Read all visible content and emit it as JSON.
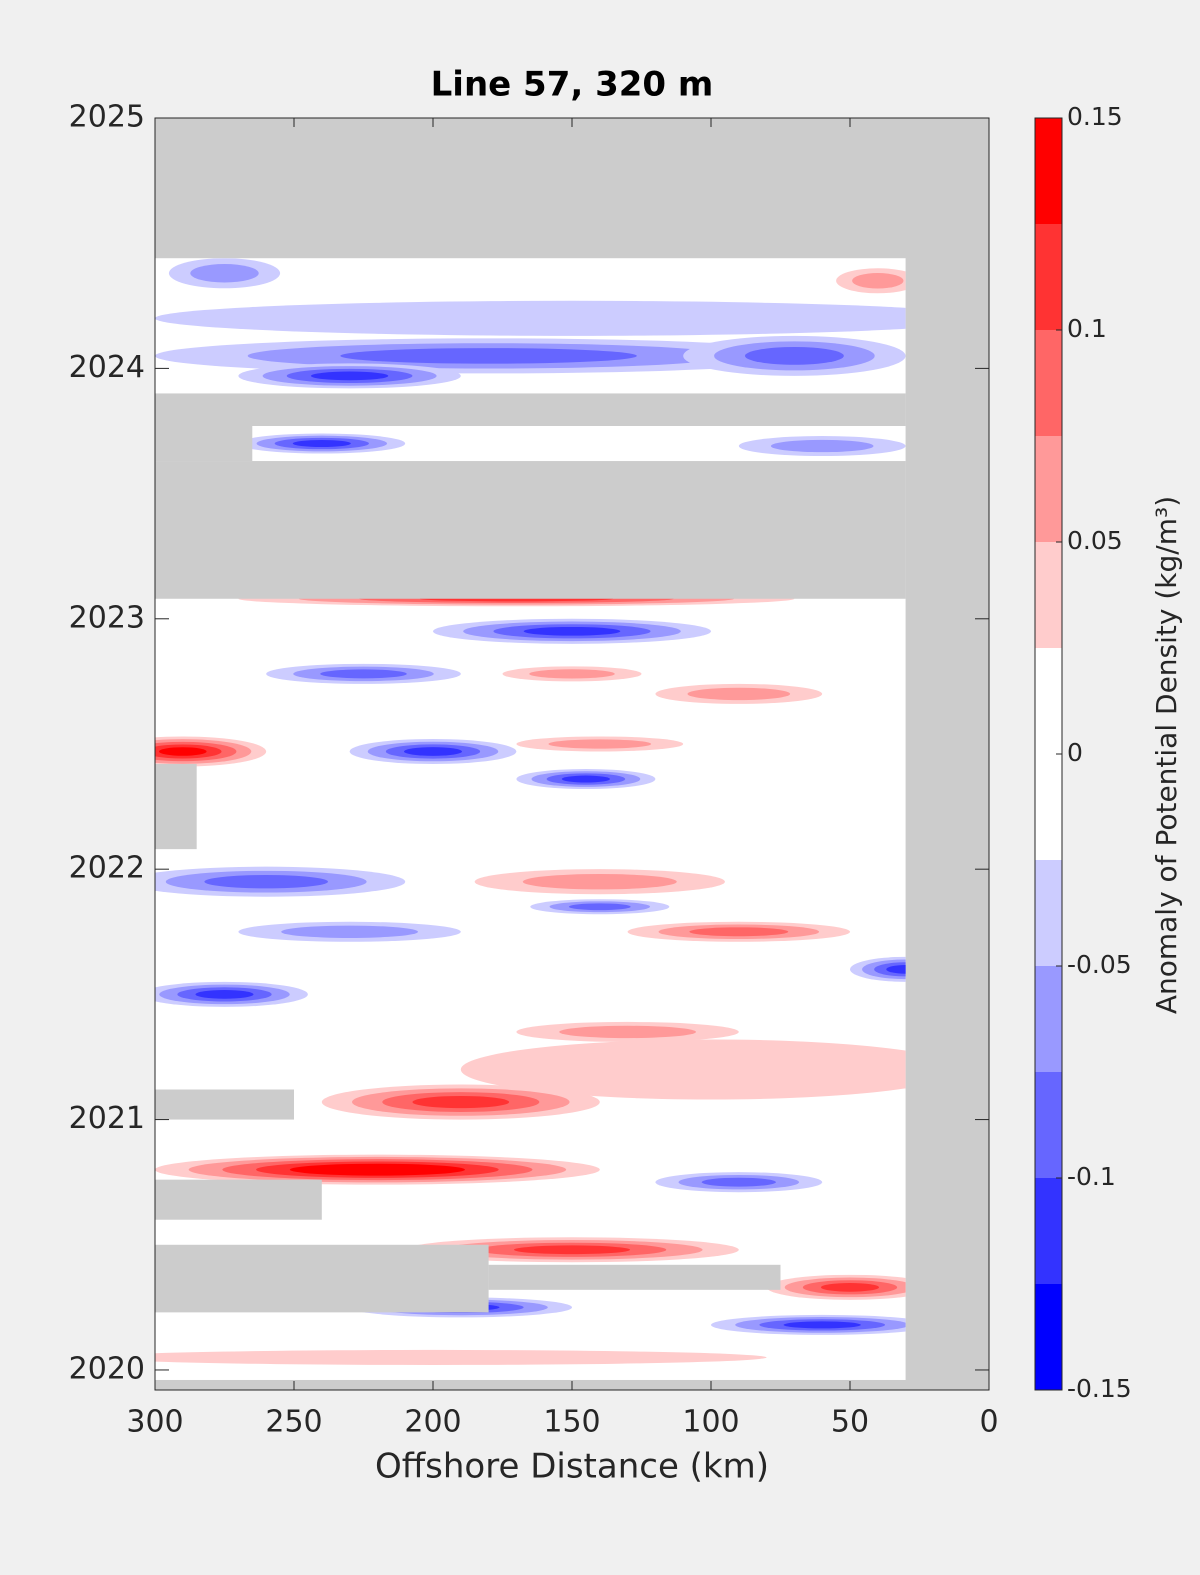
{
  "chart_data": {
    "type": "contourf",
    "title": "Line 57, 320 m",
    "xlabel": "Offshore Distance (km)",
    "colorbar_label": "Anomaly of Potential Density (kg/m³)",
    "xlim": [
      300,
      0
    ],
    "xticks": [
      300,
      250,
      200,
      150,
      100,
      50,
      0
    ],
    "ylim": [
      2019.92,
      2025
    ],
    "yticks": [
      2020,
      2021,
      2022,
      2023,
      2024,
      2025
    ],
    "missing_color": "#cccccc",
    "coverage": [
      300,
      30,
      2019.96,
      2024.44
    ],
    "levels": [
      -0.15,
      -0.125,
      -0.1,
      -0.075,
      -0.05,
      -0.025,
      0,
      0.025,
      0.05,
      0.075,
      0.1,
      0.125,
      0.15
    ],
    "colors": [
      "#0000ff",
      "#3333ff",
      "#6666ff",
      "#9999ff",
      "#ccccff",
      "#ffffff",
      "#ffffff",
      "#ffcccc",
      "#ff9999",
      "#ff6666",
      "#ff3333",
      "#ff0000"
    ],
    "cticks": [
      -0.15,
      -0.1,
      -0.05,
      0,
      0.05,
      0.1,
      0.15
    ],
    "blobs": [
      {
        "x": 150,
        "y": 2024.2,
        "rx": 150,
        "ry": 0.07,
        "value": -0.04
      },
      {
        "x": 275,
        "y": 2024.38,
        "rx": 20,
        "ry": 0.06,
        "value": -0.07
      },
      {
        "x": 180,
        "y": 2024.05,
        "rx": 120,
        "ry": 0.07,
        "value": -0.09
      },
      {
        "x": 230,
        "y": 2023.97,
        "rx": 40,
        "ry": 0.05,
        "value": -0.12
      },
      {
        "x": 70,
        "y": 2024.05,
        "rx": 40,
        "ry": 0.08,
        "value": -0.08
      },
      {
        "x": 40,
        "y": 2024.35,
        "rx": 15,
        "ry": 0.05,
        "value": 0.07
      },
      {
        "x": 240,
        "y": 2023.7,
        "rx": 30,
        "ry": 0.04,
        "value": -0.1
      },
      {
        "x": 60,
        "y": 2023.69,
        "rx": 30,
        "ry": 0.04,
        "value": -0.07
      },
      {
        "x": 170,
        "y": 2023.08,
        "rx": 100,
        "ry": 0.03,
        "value": 0.12
      },
      {
        "x": 150,
        "y": 2022.95,
        "rx": 50,
        "ry": 0.05,
        "value": -0.11
      },
      {
        "x": 225,
        "y": 2022.78,
        "rx": 35,
        "ry": 0.04,
        "value": -0.09
      },
      {
        "x": 150,
        "y": 2022.78,
        "rx": 25,
        "ry": 0.03,
        "value": 0.06
      },
      {
        "x": 90,
        "y": 2022.7,
        "rx": 30,
        "ry": 0.04,
        "value": 0.07
      },
      {
        "x": 290,
        "y": 2022.47,
        "rx": 30,
        "ry": 0.06,
        "value": 0.13
      },
      {
        "x": 200,
        "y": 2022.47,
        "rx": 30,
        "ry": 0.05,
        "value": -0.11
      },
      {
        "x": 145,
        "y": 2022.36,
        "rx": 25,
        "ry": 0.04,
        "value": -0.1
      },
      {
        "x": 140,
        "y": 2022.5,
        "rx": 30,
        "ry": 0.03,
        "value": 0.06
      },
      {
        "x": 140,
        "y": 2021.95,
        "rx": 45,
        "ry": 0.05,
        "value": 0.07
      },
      {
        "x": 90,
        "y": 2021.75,
        "rx": 40,
        "ry": 0.04,
        "value": 0.08
      },
      {
        "x": 260,
        "y": 2021.95,
        "rx": 50,
        "ry": 0.06,
        "value": -0.08
      },
      {
        "x": 140,
        "y": 2021.85,
        "rx": 25,
        "ry": 0.03,
        "value": -0.08
      },
      {
        "x": 275,
        "y": 2021.5,
        "rx": 30,
        "ry": 0.05,
        "value": -0.11
      },
      {
        "x": 30,
        "y": 2021.6,
        "rx": 20,
        "ry": 0.05,
        "value": -0.1
      },
      {
        "x": 230,
        "y": 2021.75,
        "rx": 40,
        "ry": 0.04,
        "value": -0.05
      },
      {
        "x": 100,
        "y": 2021.2,
        "rx": 90,
        "ry": 0.12,
        "value": 0.04
      },
      {
        "x": 190,
        "y": 2021.07,
        "rx": 50,
        "ry": 0.07,
        "value": 0.12
      },
      {
        "x": 130,
        "y": 2021.35,
        "rx": 40,
        "ry": 0.04,
        "value": 0.06
      },
      {
        "x": 220,
        "y": 2020.8,
        "rx": 80,
        "ry": 0.06,
        "value": 0.15
      },
      {
        "x": 150,
        "y": 2020.48,
        "rx": 60,
        "ry": 0.05,
        "value": 0.1
      },
      {
        "x": 50,
        "y": 2020.33,
        "rx": 30,
        "ry": 0.05,
        "value": 0.1
      },
      {
        "x": 90,
        "y": 2020.75,
        "rx": 30,
        "ry": 0.04,
        "value": -0.08
      },
      {
        "x": 190,
        "y": 2020.25,
        "rx": 40,
        "ry": 0.04,
        "value": -0.1
      },
      {
        "x": 60,
        "y": 2020.18,
        "rx": 40,
        "ry": 0.04,
        "value": -0.11
      },
      {
        "x": 200,
        "y": 2020.05,
        "rx": 120,
        "ry": 0.03,
        "value": 0.04
      }
    ],
    "gaps": [
      [
        300,
        30,
        2023.77,
        2023.9
      ],
      [
        300,
        265,
        2023.63,
        2023.77
      ],
      [
        300,
        30,
        2023.08,
        2023.63
      ],
      [
        300,
        285,
        2022.08,
        2022.42
      ],
      [
        300,
        250,
        2021.0,
        2021.12
      ],
      [
        300,
        240,
        2020.6,
        2020.76
      ],
      [
        300,
        180,
        2020.23,
        2020.5
      ],
      [
        180,
        75,
        2020.32,
        2020.42
      ]
    ]
  }
}
